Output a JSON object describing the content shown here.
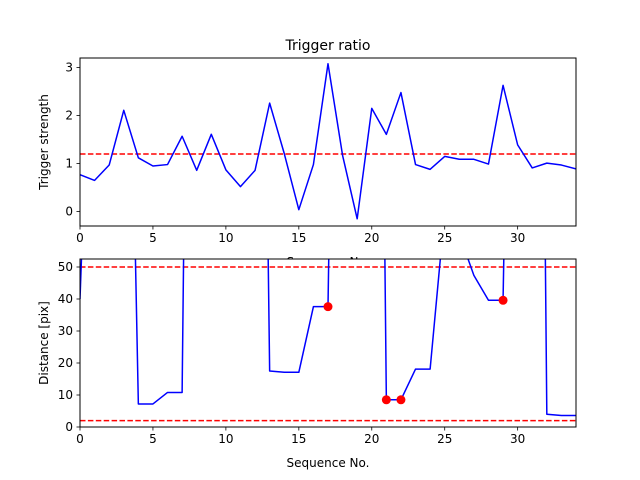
{
  "chart_data": [
    {
      "type": "line",
      "title": "Trigger ratio",
      "xlabel": "Sequence No.",
      "ylabel": "Trigger strength",
      "xlim": [
        0,
        34
      ],
      "ylim": [
        -0.3,
        3.2
      ],
      "xticks": [
        0,
        5,
        10,
        15,
        20,
        25,
        30
      ],
      "yticks": [
        0,
        1,
        2,
        3
      ],
      "grid": false,
      "series": [
        {
          "color": "#0000ff",
          "x": [
            0,
            1,
            2,
            3,
            4,
            5,
            6,
            7,
            8,
            9,
            10,
            11,
            12,
            13,
            14,
            15,
            16,
            17,
            18,
            19,
            20,
            21,
            22,
            23,
            24,
            25,
            26,
            27,
            28,
            29,
            30,
            31,
            32,
            33,
            34
          ],
          "values": [
            0.77,
            0.65,
            0.97,
            2.11,
            1.12,
            0.95,
            0.98,
            1.57,
            0.86,
            1.61,
            0.87,
            0.52,
            0.86,
            2.26,
            1.21,
            0.04,
            0.98,
            3.08,
            1.17,
            -0.15,
            2.15,
            1.61,
            2.48,
            0.98,
            0.88,
            1.15,
            1.09,
            1.09,
            0.99,
            2.63,
            1.39,
            0.91,
            1.01,
            0.97,
            0.89
          ]
        }
      ],
      "reference_lines": [
        {
          "axis": "y",
          "value": 1.2,
          "style": "dashed",
          "color": "#ff0000"
        }
      ]
    },
    {
      "type": "line",
      "title": "",
      "xlabel": "Sequence No.",
      "ylabel": "Distance [pix]",
      "xlim": [
        0,
        34
      ],
      "ylim": [
        0,
        52.5
      ],
      "xticks": [
        0,
        5,
        10,
        15,
        20,
        25,
        30
      ],
      "yticks": [
        0,
        10,
        20,
        30,
        40,
        50
      ],
      "grid": false,
      "segments": [
        {
          "color": "#0000ff",
          "x": [
            0,
            0.1
          ],
          "values": [
            40,
            52.5
          ]
        },
        {
          "color": "#0000ff",
          "x": [
            3.8,
            4,
            5,
            6,
            7,
            7.1
          ],
          "values": [
            52.5,
            7.2,
            7.2,
            10.8,
            10.8,
            52.5
          ]
        },
        {
          "color": "#0000ff",
          "x": [
            12.9,
            13,
            14,
            15,
            16,
            17,
            17.05
          ],
          "values": [
            52.5,
            17.5,
            17.1,
            17.1,
            37.6,
            37.6,
            52.5
          ]
        },
        {
          "color": "#0000ff",
          "x": [
            20.9,
            21,
            22,
            23,
            24,
            24.7
          ],
          "values": [
            52.5,
            8.5,
            8.5,
            18.1,
            18.1,
            52.5
          ]
        },
        {
          "color": "#0000ff",
          "x": [
            26.6,
            27,
            28,
            29,
            29.05
          ],
          "values": [
            52.5,
            47.4,
            39.6,
            39.6,
            52.5
          ]
        },
        {
          "color": "#0000ff",
          "x": [
            31.9,
            32,
            33,
            34
          ],
          "values": [
            52.5,
            4.0,
            3.6,
            3.6
          ]
        }
      ],
      "markers": {
        "color": "#ff0000",
        "x": [
          17,
          21,
          22,
          29
        ],
        "values": [
          37.6,
          8.5,
          8.5,
          39.6
        ]
      },
      "reference_lines": [
        {
          "axis": "y",
          "value": 50,
          "style": "dashed",
          "color": "#ff0000"
        },
        {
          "axis": "y",
          "value": 2,
          "style": "dashed",
          "color": "#ff0000"
        }
      ]
    }
  ]
}
